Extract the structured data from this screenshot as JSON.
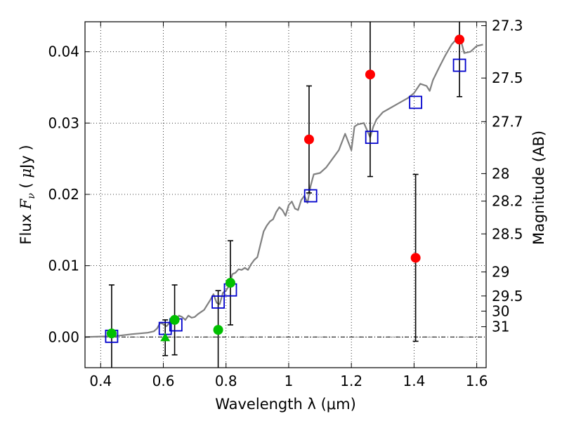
{
  "chart_data": {
    "type": "scatter",
    "title": "",
    "xlabel": "Wavelength  λ (μm)",
    "ylabel": "Flux  F_ν  ( μJy )",
    "ylabel_parts": [
      "Flux ",
      "F",
      "ν",
      " ( ",
      "μ",
      "Jy )"
    ],
    "y2label": "Magnitude (AB)",
    "xlim": [
      0.35,
      1.63
    ],
    "ylim": [
      -0.0043,
      0.0442
    ],
    "grid": true,
    "x_ticks": [
      {
        "value": 0.4,
        "label": "0.4"
      },
      {
        "value": 0.6,
        "label": "0.6"
      },
      {
        "value": 0.8,
        "label": "0.8"
      },
      {
        "value": 1.0,
        "label": "1"
      },
      {
        "value": 1.2,
        "label": "1.2"
      },
      {
        "value": 1.4,
        "label": "1.4"
      },
      {
        "value": 1.6,
        "label": "1.6"
      }
    ],
    "y_ticks": [
      {
        "value": 0.0,
        "label": "0.00"
      },
      {
        "value": 0.01,
        "label": "0.01"
      },
      {
        "value": 0.02,
        "label": "0.02"
      },
      {
        "value": 0.03,
        "label": "0.03"
      },
      {
        "value": 0.04,
        "label": "0.04"
      }
    ],
    "mag_ticks": [
      {
        "mag": 27.3,
        "label": "27.3"
      },
      {
        "mag": 27.5,
        "label": "27.5"
      },
      {
        "mag": 27.7,
        "label": "27.7"
      },
      {
        "mag": 28.0,
        "label": "28"
      },
      {
        "mag": 28.2,
        "label": "28.2"
      },
      {
        "mag": 28.5,
        "label": "28.5"
      },
      {
        "mag": 29.0,
        "label": "29"
      },
      {
        "mag": 29.5,
        "label": "29.5"
      },
      {
        "mag": 30.0,
        "label": "30"
      },
      {
        "mag": 31.0,
        "label": "31"
      }
    ],
    "colors": {
      "model": "#808080",
      "red": "#ff0000",
      "green": "#00c000",
      "square": "#0000cc",
      "errorbar": "#000000",
      "zeroline": "#000000"
    },
    "model_spectrum": {
      "name": "",
      "x": [
        0.35,
        0.42,
        0.46,
        0.5,
        0.55,
        0.57,
        0.58,
        0.59,
        0.6,
        0.61,
        0.62,
        0.63,
        0.64,
        0.65,
        0.66,
        0.67,
        0.68,
        0.69,
        0.7,
        0.71,
        0.72,
        0.73,
        0.74,
        0.75,
        0.76,
        0.77,
        0.78,
        0.79,
        0.8,
        0.81,
        0.82,
        0.83,
        0.84,
        0.85,
        0.86,
        0.87,
        0.88,
        0.89,
        0.9,
        0.91,
        0.92,
        0.93,
        0.94,
        0.95,
        0.96,
        0.97,
        0.98,
        0.99,
        1.0,
        1.01,
        1.02,
        1.03,
        1.04,
        1.05,
        1.06,
        1.07,
        1.08,
        1.09,
        1.1,
        1.12,
        1.14,
        1.16,
        1.18,
        1.2,
        1.21,
        1.22,
        1.24,
        1.26,
        1.27,
        1.28,
        1.3,
        1.32,
        1.34,
        1.36,
        1.38,
        1.4,
        1.42,
        1.44,
        1.45,
        1.46,
        1.48,
        1.5,
        1.52,
        1.54,
        1.55,
        1.56,
        1.58,
        1.6,
        1.62
      ],
      "y": [
        0.0,
        0.0001,
        0.0002,
        0.0004,
        0.0006,
        0.0008,
        0.0012,
        0.002,
        0.0018,
        0.0015,
        0.002,
        0.0025,
        0.0022,
        0.003,
        0.0028,
        0.0024,
        0.003,
        0.0027,
        0.0028,
        0.0032,
        0.0035,
        0.0038,
        0.0045,
        0.0052,
        0.006,
        0.0048,
        0.0046,
        0.0062,
        0.0065,
        0.0072,
        0.0088,
        0.009,
        0.0095,
        0.0094,
        0.0097,
        0.0094,
        0.0102,
        0.0108,
        0.0112,
        0.013,
        0.0148,
        0.0156,
        0.0162,
        0.0165,
        0.0175,
        0.0182,
        0.0178,
        0.017,
        0.0185,
        0.019,
        0.018,
        0.0178,
        0.0192,
        0.0198,
        0.0188,
        0.0212,
        0.0228,
        0.0229,
        0.023,
        0.0238,
        0.025,
        0.0262,
        0.0285,
        0.0262,
        0.0295,
        0.0298,
        0.03,
        0.028,
        0.0295,
        0.0305,
        0.0315,
        0.032,
        0.0325,
        0.033,
        0.0335,
        0.0342,
        0.0355,
        0.0352,
        0.0345,
        0.036,
        0.0378,
        0.0395,
        0.041,
        0.042,
        0.0415,
        0.0398,
        0.04,
        0.0408,
        0.041
      ]
    },
    "series": [
      {
        "name": "",
        "marker": "circle",
        "color": "red",
        "points": [
          {
            "x": 1.065,
            "y": 0.0277,
            "yerr": 0.0075
          },
          {
            "x": 1.26,
            "y": 0.0368,
            "yerr": 0.0143
          },
          {
            "x": 1.405,
            "y": 0.0111,
            "yerr": 0.0117
          },
          {
            "x": 1.545,
            "y": 0.0417,
            "yerr": 0.008
          }
        ]
      },
      {
        "name": "",
        "marker": "circle",
        "color": "green",
        "points": [
          {
            "x": 0.435,
            "y": 0.0005,
            "yerr": 0.0068
          },
          {
            "x": 0.636,
            "y": 0.0024,
            "yerr": 0.0049
          },
          {
            "x": 0.775,
            "y": 0.001,
            "yerr": 0.0055
          },
          {
            "x": 0.814,
            "y": 0.0076,
            "yerr": 0.0059
          }
        ]
      },
      {
        "name": "",
        "marker": "triangle",
        "color": "green",
        "points": [
          {
            "x": 0.606,
            "y": -0.0001,
            "yerr": 0.0025
          }
        ]
      },
      {
        "name": "",
        "marker": "square",
        "color": "square",
        "points": [
          {
            "x": 0.435,
            "y": 0.0001
          },
          {
            "x": 0.606,
            "y": 0.0012
          },
          {
            "x": 0.64,
            "y": 0.0017
          },
          {
            "x": 0.775,
            "y": 0.0049
          },
          {
            "x": 0.814,
            "y": 0.0066
          },
          {
            "x": 1.07,
            "y": 0.0198
          },
          {
            "x": 1.265,
            "y": 0.028
          },
          {
            "x": 1.405,
            "y": 0.0329
          },
          {
            "x": 1.545,
            "y": 0.0381
          }
        ]
      }
    ]
  }
}
